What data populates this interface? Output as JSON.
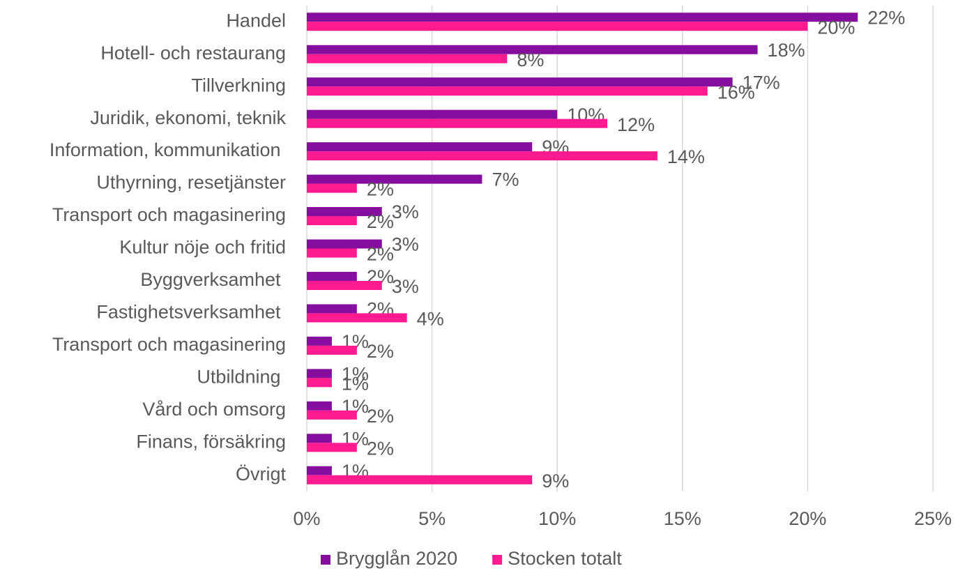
{
  "chart_data": {
    "type": "bar",
    "orientation": "horizontal",
    "categories": [
      "Handel",
      "Hotell- och restaurang",
      "Tillverkning",
      "Juridik, ekonomi, teknik",
      "Information, kommunikation ",
      "Uthyrning, resetjänster",
      "Transport och magasinering",
      "Kultur nöje och fritid",
      "Byggverksamhet ",
      "Fastighetsverksamhet ",
      "Transport och magasinering",
      "Utbildning ",
      "Vård och omsorg",
      "Finans, försäkring",
      "Övrigt"
    ],
    "series": [
      {
        "name": "Brygglån 2020",
        "color": "#860e9e",
        "values": [
          22,
          18,
          17,
          10,
          9,
          7,
          3,
          3,
          2,
          2,
          1,
          1,
          1,
          1,
          1
        ],
        "value_labels": [
          "22%",
          "18%",
          "17%",
          "10%",
          "9%",
          "7%",
          "3%",
          "3%",
          "2%",
          "2%",
          "1%",
          "1%",
          "1%",
          "1%",
          "1%"
        ]
      },
      {
        "name": "Stocken totalt",
        "color": "#ff1a8f",
        "values": [
          20,
          8,
          16,
          12,
          14,
          2,
          2,
          2,
          3,
          4,
          2,
          1,
          2,
          2,
          9
        ],
        "value_labels": [
          "20%",
          "8%",
          "16%",
          "12%",
          "14%",
          "2%",
          "2%",
          "2%",
          "3%",
          "4%",
          "2%",
          "1%",
          "2%",
          "2%",
          "9%"
        ]
      }
    ],
    "xlim": [
      0,
      25
    ],
    "xticks": [
      {
        "value": 0,
        "label": "0%"
      },
      {
        "value": 5,
        "label": "5%"
      },
      {
        "value": 10,
        "label": "10%"
      },
      {
        "value": 15,
        "label": "15%"
      },
      {
        "value": 20,
        "label": "20%"
      },
      {
        "value": 25,
        "label": "25%"
      }
    ],
    "grid": true,
    "legend": "bottom"
  }
}
